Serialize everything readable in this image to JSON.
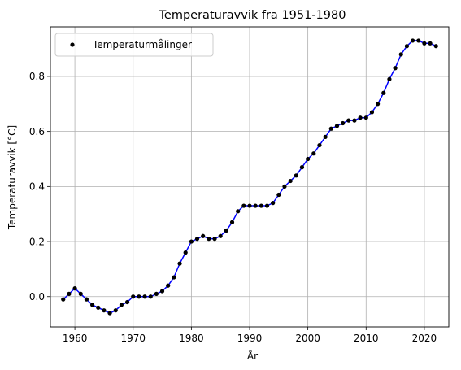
{
  "chart_data": {
    "type": "line",
    "title": "Temperaturavvik fra 1951-1980",
    "xlabel": "År",
    "ylabel": "Temperaturavvik [°C]",
    "xlim": [
      1955.8,
      2024.2
    ],
    "ylim": [
      -0.11,
      0.98
    ],
    "grid": true,
    "legend_position": "top-left",
    "x_ticks": [
      1960,
      1970,
      1980,
      1990,
      2000,
      2010,
      2020
    ],
    "x_tick_labels": [
      "1960",
      "1970",
      "1980",
      "1990",
      "2000",
      "2010",
      "2020"
    ],
    "y_ticks": [
      0.0,
      0.2,
      0.4,
      0.6,
      0.8
    ],
    "y_tick_labels": [
      "0.0",
      "0.2",
      "0.4",
      "0.6",
      "0.8"
    ],
    "x": [
      1958,
      1959,
      1960,
      1961,
      1962,
      1963,
      1964,
      1965,
      1966,
      1967,
      1968,
      1969,
      1970,
      1971,
      1972,
      1973,
      1974,
      1975,
      1976,
      1977,
      1978,
      1979,
      1980,
      1981,
      1982,
      1983,
      1984,
      1985,
      1986,
      1987,
      1988,
      1989,
      1990,
      1991,
      1992,
      1993,
      1994,
      1995,
      1996,
      1997,
      1998,
      1999,
      2000,
      2001,
      2002,
      2003,
      2004,
      2005,
      2006,
      2007,
      2008,
      2009,
      2010,
      2011,
      2012,
      2013,
      2014,
      2015,
      2016,
      2017,
      2018,
      2019,
      2020,
      2021,
      2022
    ],
    "series": [
      {
        "name": "Temperaturmålinger",
        "marker_color": "#000000",
        "line_color": "#0000ff",
        "values": [
          -0.01,
          0.01,
          0.03,
          0.01,
          -0.01,
          -0.03,
          -0.04,
          -0.05,
          -0.06,
          -0.05,
          -0.03,
          -0.02,
          0.0,
          0.0,
          0.0,
          0.0,
          0.01,
          0.02,
          0.04,
          0.07,
          0.12,
          0.16,
          0.2,
          0.21,
          0.22,
          0.21,
          0.21,
          0.22,
          0.24,
          0.27,
          0.31,
          0.33,
          0.33,
          0.33,
          0.33,
          0.33,
          0.34,
          0.37,
          0.4,
          0.42,
          0.44,
          0.47,
          0.5,
          0.52,
          0.55,
          0.58,
          0.61,
          0.62,
          0.63,
          0.64,
          0.64,
          0.65,
          0.65,
          0.67,
          0.7,
          0.74,
          0.79,
          0.83,
          0.88,
          0.91,
          0.93,
          0.93,
          0.92,
          0.92,
          0.91
        ]
      }
    ]
  }
}
